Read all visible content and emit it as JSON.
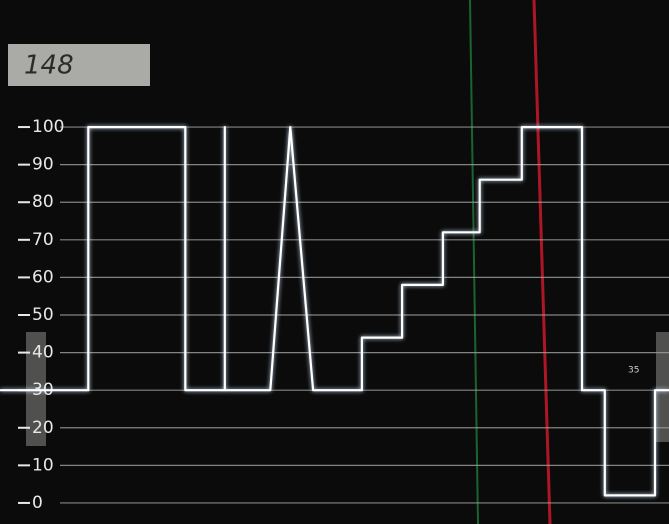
{
  "chart_data": {
    "type": "line",
    "annotations": [
      "148",
      "35"
    ],
    "x": [
      0,
      13.2,
      13.2,
      27.7,
      27.7,
      33.6,
      33.6,
      33.6,
      40.4,
      43.4,
      46.8,
      54.1,
      54.1,
      60.1,
      60.1,
      66.2,
      66.2,
      71.7,
      71.7,
      78.0,
      78.0,
      87.0,
      87.0,
      90.4,
      90.4,
      97.9,
      97.9,
      100
    ],
    "series": [
      {
        "color": "#ffffff",
        "values": [
          30,
          30,
          100,
          100,
          30,
          30,
          100,
          30,
          30,
          100,
          30,
          30,
          44,
          44,
          58,
          58,
          72,
          72,
          86,
          86,
          100,
          100,
          30,
          30,
          2,
          2,
          30,
          30
        ]
      }
    ],
    "xlim": [
      0,
      100
    ],
    "ylim": [
      -5.6,
      133.8
    ],
    "yticks": [
      0,
      10,
      20,
      30,
      40,
      50,
      60,
      70,
      80,
      90,
      100
    ],
    "grid": true
  }
}
